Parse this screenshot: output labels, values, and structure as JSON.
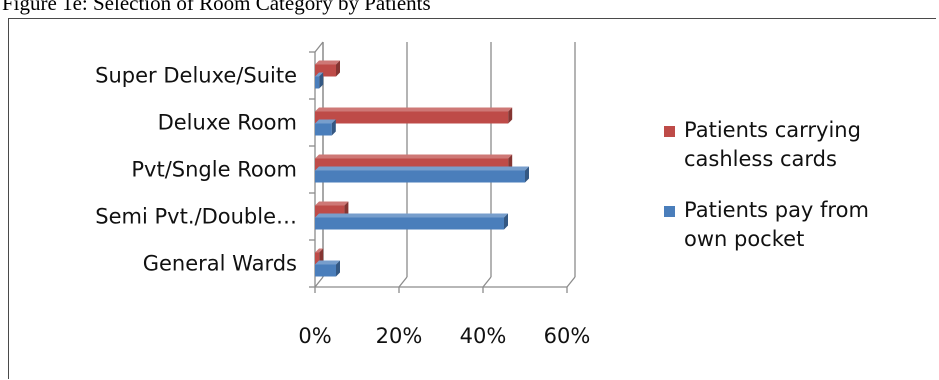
{
  "figure": {
    "caption": "Figure 1e: Selection of Room Category by Patients"
  },
  "chart_data": {
    "type": "bar",
    "orientation": "horizontal",
    "style": "3d",
    "title": "",
    "xlabel": "",
    "ylabel": "",
    "categories": [
      "General Wards",
      "Semi Pvt./Double…",
      "Pvt/Sngle Room",
      "Deluxe Room",
      "Super Deluxe/Suite"
    ],
    "series": [
      {
        "name": "Patients pay  from own pocket",
        "color": "#4a7ebb",
        "values": [
          5,
          45,
          50,
          4,
          1
        ]
      },
      {
        "name": "Patients carrying cashless cards",
        "color": "#be4b48",
        "values": [
          1,
          7,
          46,
          46,
          5
        ]
      }
    ],
    "xlim": [
      0,
      60
    ],
    "xticks": [
      "0%",
      "20%",
      "40%",
      "60%"
    ],
    "grid": true,
    "legend": {
      "position": "right",
      "entries": [
        {
          "lines": [
            "Patients carrying",
            "cashless cards"
          ],
          "color": "#be4b48"
        },
        {
          "lines": [
            "Patients pay  from",
            "own pocket"
          ],
          "color": "#4a7ebb"
        }
      ]
    }
  }
}
